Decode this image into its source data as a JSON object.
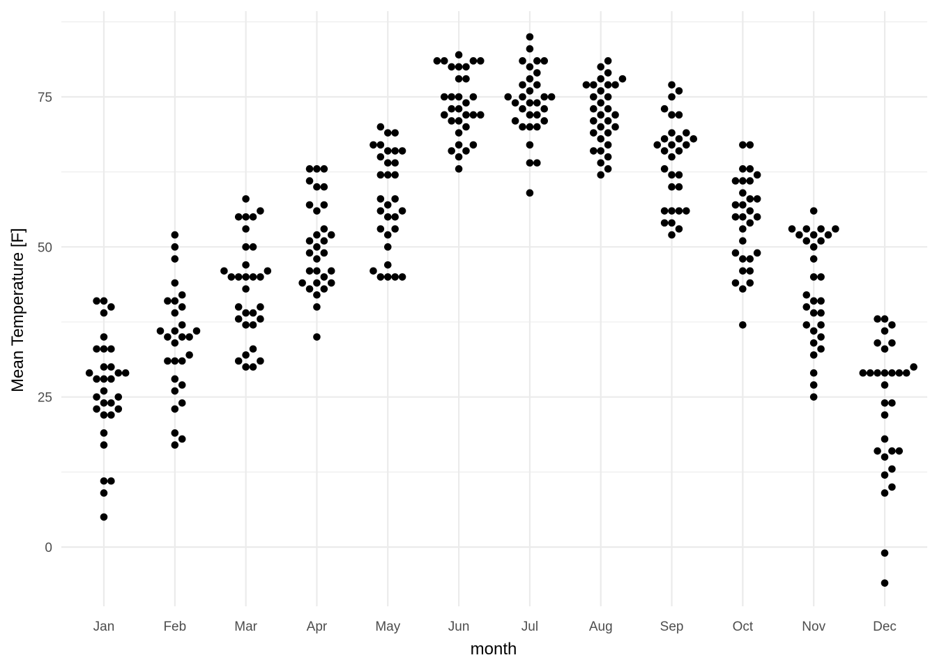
{
  "chart_data": {
    "type": "scatter",
    "title": "",
    "xlabel": "month",
    "ylabel": "Mean Temperature [F]",
    "grid": true,
    "legend": "none",
    "categories": [
      "Jan",
      "Feb",
      "Mar",
      "Apr",
      "May",
      "Jun",
      "Jul",
      "Aug",
      "Sep",
      "Oct",
      "Nov",
      "Dec"
    ],
    "y_ticks": [
      0,
      25,
      50,
      75
    ],
    "ylim": [
      -10,
      88
    ],
    "point_color": "#000000",
    "grid_color": "#ebebeb",
    "series": [
      {
        "month": "Jan",
        "values": [
          41,
          41,
          40,
          39,
          35,
          33,
          33,
          33,
          30,
          30,
          29,
          29,
          29,
          28,
          28,
          28,
          26,
          25,
          25,
          24,
          24,
          23,
          23,
          22,
          22,
          19,
          17,
          11,
          11,
          9,
          5
        ]
      },
      {
        "month": "Feb",
        "values": [
          52,
          50,
          48,
          44,
          42,
          41,
          41,
          40,
          39,
          37,
          36,
          36,
          36,
          35,
          35,
          35,
          34,
          32,
          31,
          31,
          31,
          28,
          27,
          26,
          24,
          23,
          19,
          18,
          17
        ]
      },
      {
        "month": "Mar",
        "values": [
          58,
          56,
          55,
          55,
          55,
          53,
          50,
          50,
          47,
          46,
          46,
          45,
          45,
          45,
          45,
          45,
          43,
          40,
          40,
          39,
          39,
          38,
          38,
          37,
          37,
          33,
          32,
          31,
          31,
          30,
          30
        ]
      },
      {
        "month": "Apr",
        "values": [
          63,
          63,
          63,
          61,
          60,
          60,
          57,
          57,
          56,
          53,
          52,
          52,
          51,
          51,
          50,
          49,
          49,
          48,
          46,
          46,
          46,
          45,
          44,
          44,
          44,
          43,
          43,
          42,
          40,
          35
        ]
      },
      {
        "month": "May",
        "values": [
          70,
          69,
          69,
          67,
          67,
          66,
          66,
          66,
          65,
          64,
          64,
          62,
          62,
          62,
          58,
          58,
          57,
          56,
          56,
          55,
          55,
          53,
          53,
          52,
          50,
          47,
          46,
          45,
          45,
          45,
          45
        ]
      },
      {
        "month": "Jun",
        "values": [
          82,
          81,
          81,
          81,
          81,
          80,
          80,
          80,
          78,
          78,
          75,
          75,
          75,
          75,
          74,
          73,
          73,
          72,
          72,
          72,
          72,
          71,
          71,
          70,
          69,
          67,
          67,
          66,
          66,
          65,
          63
        ]
      },
      {
        "month": "Jul",
        "values": [
          85,
          83,
          81,
          81,
          81,
          80,
          79,
          78,
          77,
          77,
          76,
          75,
          75,
          75,
          75,
          74,
          74,
          74,
          73,
          73,
          72,
          72,
          71,
          71,
          70,
          70,
          70,
          67,
          64,
          64,
          59
        ]
      },
      {
        "month": "Aug",
        "values": [
          81,
          80,
          79,
          78,
          78,
          77,
          77,
          77,
          77,
          76,
          75,
          75,
          74,
          73,
          73,
          72,
          72,
          71,
          71,
          70,
          70,
          69,
          69,
          68,
          67,
          66,
          66,
          65,
          64,
          63,
          62
        ]
      },
      {
        "month": "Sep",
        "values": [
          77,
          76,
          75,
          73,
          72,
          72,
          69,
          69,
          68,
          68,
          68,
          67,
          67,
          67,
          66,
          66,
          65,
          63,
          62,
          62,
          60,
          60,
          56,
          56,
          56,
          56,
          54,
          54,
          53,
          52
        ]
      },
      {
        "month": "Oct",
        "values": [
          67,
          67,
          63,
          63,
          62,
          61,
          61,
          61,
          59,
          58,
          58,
          57,
          57,
          56,
          55,
          55,
          55,
          54,
          53,
          51,
          49,
          49,
          48,
          48,
          46,
          46,
          44,
          44,
          43,
          37
        ]
      },
      {
        "month": "Nov",
        "values": [
          56,
          53,
          53,
          53,
          53,
          52,
          52,
          52,
          51,
          51,
          50,
          48,
          45,
          45,
          42,
          41,
          41,
          40,
          39,
          39,
          37,
          37,
          36,
          35,
          34,
          33,
          32,
          29,
          27,
          25
        ]
      },
      {
        "month": "Dec",
        "values": [
          38,
          38,
          37,
          36,
          34,
          34,
          33,
          30,
          29,
          29,
          29,
          29,
          29,
          29,
          29,
          27,
          24,
          24,
          22,
          18,
          16,
          16,
          16,
          15,
          13,
          12,
          10,
          9,
          -1,
          -6
        ]
      }
    ]
  }
}
